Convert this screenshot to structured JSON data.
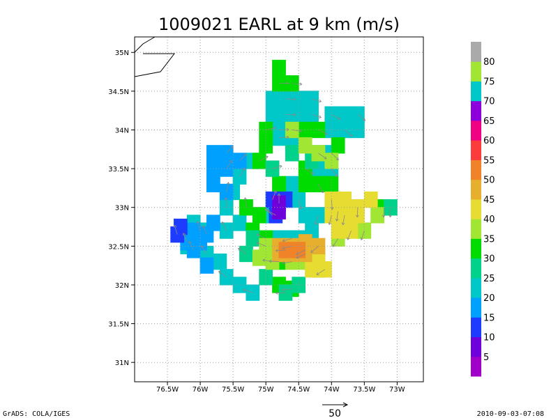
{
  "chart_data": {
    "type": "heatmap",
    "title": "1009021 EARL at 9 km (m/s)",
    "xlabel": "",
    "ylabel": "",
    "xlim": [
      -77,
      -72.6
    ],
    "ylim": [
      30.75,
      35.2
    ],
    "x_ticks": [
      {
        "value": -76.5,
        "label": "76.5W"
      },
      {
        "value": -76.0,
        "label": "76W"
      },
      {
        "value": -75.5,
        "label": "75.5W"
      },
      {
        "value": -75.0,
        "label": "75W"
      },
      {
        "value": -74.5,
        "label": "74.5W"
      },
      {
        "value": -74.0,
        "label": "74W"
      },
      {
        "value": -73.5,
        "label": "73.5W"
      },
      {
        "value": -73.0,
        "label": "73W"
      }
    ],
    "y_ticks": [
      {
        "value": 31.0,
        "label": "31N"
      },
      {
        "value": 31.5,
        "label": "31.5N"
      },
      {
        "value": 32.0,
        "label": "32N"
      },
      {
        "value": 32.5,
        "label": "32.5N"
      },
      {
        "value": 33.0,
        "label": "33N"
      },
      {
        "value": 33.5,
        "label": "33.5N"
      },
      {
        "value": 34.0,
        "label": "34N"
      },
      {
        "value": 34.5,
        "label": "34.5N"
      },
      {
        "value": 35.0,
        "label": "35N"
      }
    ],
    "grid": true,
    "colorbar": {
      "placement": "right",
      "levels": [
        "5",
        "10",
        "15",
        "20",
        "25",
        "30",
        "35",
        "40",
        "45",
        "50",
        "55",
        "60",
        "65",
        "70",
        "75",
        "80"
      ],
      "colors": [
        "#a000c8",
        "#6e00dc",
        "#1e3cff",
        "#00a0ff",
        "#00c8c8",
        "#00d28c",
        "#00dc00",
        "#a0e632",
        "#e6dc32",
        "#e6af2d",
        "#f08228",
        "#fa3c3c",
        "#f00082",
        "#8c00dc",
        "#00c8c8",
        "#a0e632",
        "#aaaaaa"
      ]
    },
    "reference_vector": {
      "label": "50"
    },
    "wind_regions": [
      {
        "category": "25-30",
        "cells": [
          [
            -74.3,
            34.4
          ],
          [
            -74.5,
            34.4
          ],
          [
            -74.7,
            34.4
          ],
          [
            -74.9,
            34.4
          ],
          [
            -74.3,
            34.2
          ],
          [
            -74.5,
            34.2
          ],
          [
            -74.7,
            34.2
          ],
          [
            -74.9,
            34.2
          ],
          [
            -74.0,
            34.2
          ],
          [
            -73.8,
            34.2
          ],
          [
            -73.6,
            34.2
          ],
          [
            -73.6,
            34.0
          ],
          [
            -73.8,
            34.0
          ],
          [
            -74.0,
            34.0
          ],
          [
            -74.8,
            33.9
          ],
          [
            -74.6,
            33.9
          ],
          [
            -74.8,
            34.0
          ],
          [
            -74.2,
            33.7
          ],
          [
            -74.0,
            33.7
          ],
          [
            -74.2,
            33.5
          ],
          [
            -74.0,
            33.5
          ],
          [
            -75.2,
            33.6
          ],
          [
            -75.4,
            33.4
          ],
          [
            -75.5,
            33.2
          ],
          [
            -75.6,
            33.0
          ],
          [
            -75.4,
            32.8
          ],
          [
            -75.6,
            32.7
          ],
          [
            -76.1,
            32.8
          ],
          [
            -76.0,
            32.7
          ],
          [
            -76.2,
            32.5
          ],
          [
            -75.9,
            32.4
          ],
          [
            -75.7,
            32.3
          ],
          [
            -75.6,
            32.1
          ],
          [
            -75.4,
            32.0
          ],
          [
            -75.2,
            31.9
          ],
          [
            -74.7,
            33.2
          ],
          [
            -74.5,
            33.1
          ],
          [
            -74.6,
            33.3
          ],
          [
            -74.9,
            33.1
          ],
          [
            -74.4,
            32.9
          ],
          [
            -74.2,
            32.9
          ],
          [
            -74.3,
            32.7
          ],
          [
            -74.9,
            32.9
          ],
          [
            -74.8,
            32.6
          ],
          [
            -74.6,
            32.6
          ],
          [
            -74.4,
            32.6
          ]
        ]
      },
      {
        "category": "30-35",
        "cells": [
          [
            -74.8,
            34.6
          ],
          [
            -74.8,
            34.8
          ],
          [
            -74.6,
            34.6
          ],
          [
            -74.4,
            34.0
          ],
          [
            -74.2,
            34.0
          ],
          [
            -73.9,
            33.8
          ],
          [
            -75.0,
            34.0
          ],
          [
            -75.0,
            33.8
          ],
          [
            -74.4,
            33.5
          ],
          [
            -74.4,
            33.3
          ],
          [
            -74.2,
            33.3
          ],
          [
            -74.0,
            33.3
          ],
          [
            -75.3,
            33.0
          ],
          [
            -75.1,
            32.9
          ],
          [
            -75.0,
            32.6
          ],
          [
            -75.2,
            32.7
          ],
          [
            -74.8,
            32.3
          ],
          [
            -74.2,
            32.2
          ],
          [
            -74.6,
            31.95
          ],
          [
            -74.8,
            32.0
          ],
          [
            -73.2,
            33.0
          ],
          [
            -74.8,
            33.3
          ],
          [
            -75.1,
            33.6
          ]
        ]
      },
      {
        "category": "35-40",
        "cells": [
          [
            -74.3,
            33.6
          ],
          [
            -73.1,
            33.0
          ],
          [
            -75.2,
            32.6
          ],
          [
            -75.3,
            32.4
          ],
          [
            -75.0,
            32.1
          ],
          [
            -74.7,
            31.9
          ],
          [
            -74.5,
            32.0
          ],
          [
            -74.9,
            33.5
          ],
          [
            -74.6,
            33.7
          ]
        ]
      },
      {
        "category": "40-45",
        "cells": [
          [
            -74.6,
            34.0
          ],
          [
            -74.4,
            33.8
          ],
          [
            -74.2,
            33.7
          ],
          [
            -74.0,
            33.6
          ],
          [
            -75.0,
            32.5
          ],
          [
            -74.8,
            32.4
          ],
          [
            -74.9,
            32.3
          ],
          [
            -75.1,
            32.35
          ],
          [
            -74.6,
            32.3
          ],
          [
            -74.4,
            32.3
          ],
          [
            -74.4,
            32.45
          ],
          [
            -74.2,
            32.4
          ],
          [
            -73.9,
            32.6
          ],
          [
            -73.7,
            32.8
          ],
          [
            -73.5,
            32.7
          ],
          [
            -73.3,
            32.9
          ]
        ]
      },
      {
        "category": "45-50",
        "cells": [
          [
            -74.0,
            33.1
          ],
          [
            -73.8,
            33.1
          ],
          [
            -73.6,
            33.0
          ],
          [
            -73.4,
            33.1
          ],
          [
            -73.8,
            32.9
          ],
          [
            -73.6,
            32.9
          ],
          [
            -74.0,
            32.9
          ],
          [
            -73.9,
            32.7
          ],
          [
            -73.7,
            32.7
          ],
          [
            -74.2,
            32.3
          ],
          [
            -74.1,
            32.2
          ],
          [
            -74.3,
            32.2
          ],
          [
            -73.9,
            32.95
          ]
        ]
      },
      {
        "category": "50-55",
        "cells": [
          [
            -74.8,
            32.5
          ],
          [
            -74.6,
            32.5
          ],
          [
            -74.4,
            32.55
          ],
          [
            -74.2,
            32.5
          ],
          [
            -74.6,
            32.4
          ],
          [
            -74.4,
            32.4
          ],
          [
            -74.8,
            32.4
          ]
        ]
      },
      {
        "category": "55-60",
        "cells": [
          [
            -74.7,
            32.45
          ],
          [
            -74.5,
            32.45
          ]
        ]
      },
      {
        "category": "5-10",
        "cells": [
          [
            -74.8,
            33.05
          ],
          [
            -74.8,
            32.95
          ]
        ]
      },
      {
        "category": "10-15",
        "cells": [
          [
            -74.9,
            33.1
          ],
          [
            -74.7,
            33.1
          ],
          [
            -74.85,
            32.9
          ],
          [
            -76.3,
            32.75
          ],
          [
            -76.35,
            32.65
          ]
        ]
      },
      {
        "category": "15-20",
        "cells": [
          [
            -76.1,
            32.7
          ],
          [
            -75.9,
            32.65
          ],
          [
            -76.0,
            32.55
          ],
          [
            -76.2,
            32.55
          ]
        ]
      },
      {
        "category": "20-25",
        "cells": [
          [
            -75.8,
            33.7
          ],
          [
            -75.6,
            33.7
          ],
          [
            -75.8,
            33.5
          ],
          [
            -75.6,
            33.5
          ],
          [
            -75.8,
            33.3
          ],
          [
            -75.4,
            33.6
          ],
          [
            -75.8,
            32.8
          ],
          [
            -76.1,
            32.45
          ],
          [
            -75.9,
            32.25
          ],
          [
            -75.6,
            33.2
          ]
        ]
      }
    ]
  },
  "footer": {
    "left": "GrADS: COLA/IGES",
    "right": "2010-09-03-07:08"
  },
  "coast_line": true
}
